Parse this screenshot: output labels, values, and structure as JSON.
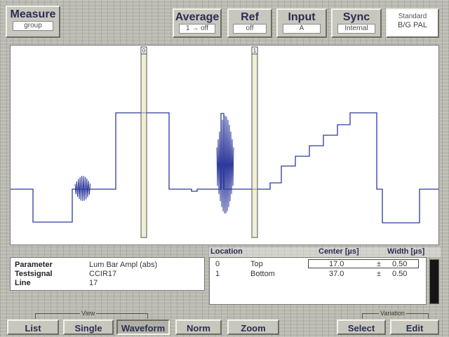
{
  "top_bar": {
    "measure": {
      "title": "Measure",
      "value": "group"
    },
    "average": {
      "title": "Average",
      "value": "1 → off"
    },
    "ref": {
      "title": "Ref",
      "value": "off"
    },
    "input": {
      "title": "Input",
      "value": "A"
    },
    "sync": {
      "title": "Sync",
      "value": "Internal"
    },
    "standard": {
      "line1": "Standard",
      "line2": "B/G PAL"
    }
  },
  "waveform": {
    "cursors": [
      {
        "label": "0"
      },
      {
        "label": "1"
      }
    ],
    "trace_color": "#2e3a9c",
    "cursor_color": "#e3e1b4"
  },
  "info_panel": {
    "rows": [
      {
        "label": "Parameter",
        "value": "Lum Bar Ampl (abs)"
      },
      {
        "label": "Testsignal",
        "value": "CCIR17"
      },
      {
        "label": "Line",
        "value": "17"
      }
    ]
  },
  "location_table": {
    "headers": {
      "location": "Location",
      "center": "Center [µs]",
      "width": "Width [µs]"
    },
    "rows": [
      {
        "index": "0",
        "name": "Top",
        "center": "17.0",
        "pm": "±",
        "width": "0.50"
      },
      {
        "index": "1",
        "name": "Bottom",
        "center": "37.0",
        "pm": "±",
        "width": "0.50"
      }
    ]
  },
  "bottom_bar": {
    "view_group_label": "View",
    "variation_group_label": "Variation",
    "buttons": {
      "list": "List",
      "single": "Single",
      "waveform": "Waveform",
      "norm": "Norm",
      "zoom": "Zoom",
      "select": "Select",
      "edit": "Edit"
    }
  }
}
